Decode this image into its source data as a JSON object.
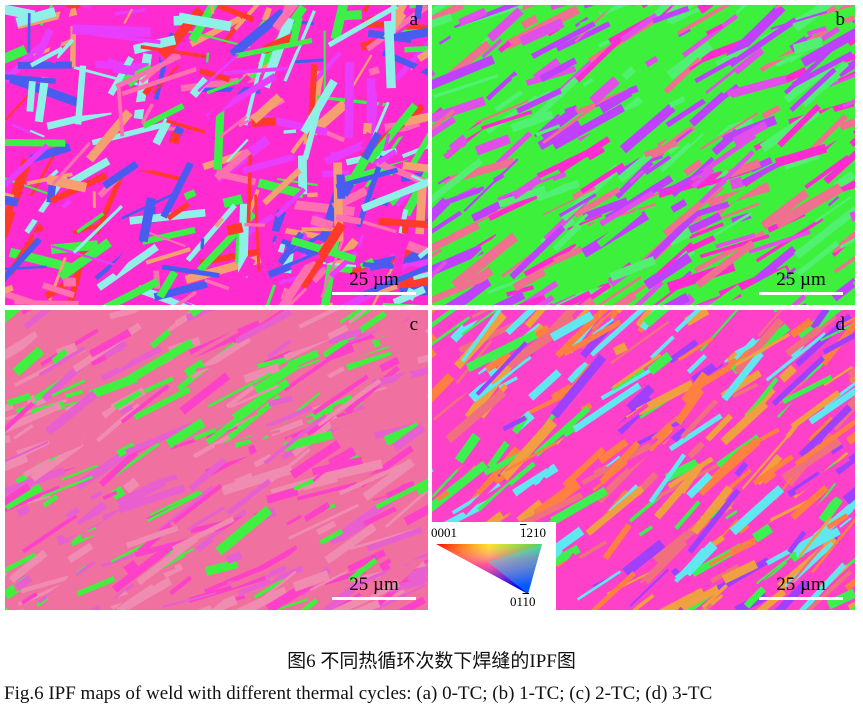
{
  "panels": [
    {
      "label": "a",
      "scale_bar": "25 µm",
      "palette": [
        "#ff2bd0",
        "#e83cff",
        "#4a5cf0",
        "#ff3a2a",
        "#f4a070",
        "#3cf04a",
        "#8ff0e8",
        "#ff70b0"
      ]
    },
    {
      "label": "b",
      "scale_bar": "25 µm",
      "palette": [
        "#3cf03c",
        "#ff2bd0",
        "#f07090",
        "#e050e8",
        "#c040ff",
        "#50f070"
      ]
    },
    {
      "label": "c",
      "scale_bar": "25 µm",
      "palette": [
        "#f070a0",
        "#ff40c8",
        "#40f040",
        "#f08cb0",
        "#e860d0"
      ]
    },
    {
      "label": "d",
      "scale_bar": "25 µm",
      "palette": [
        "#ff40c8",
        "#f0a040",
        "#3cf050",
        "#a040ff",
        "#60e8f0",
        "#f07080",
        "#ff8040"
      ]
    }
  ],
  "legend": {
    "top_left": "0001",
    "top_right_bar": "1",
    "top_right_rest": "210",
    "bottom_first": "01",
    "bottom_bar": "1",
    "bottom_rest": "0"
  },
  "caption": {
    "chinese": "图6  不同热循环次数下焊缝的IPF图",
    "english": "Fig.6  IPF maps of weld with different thermal cycles: (a) 0-TC; (b) 1-TC; (c) 2-TC; (d) 3-TC"
  }
}
